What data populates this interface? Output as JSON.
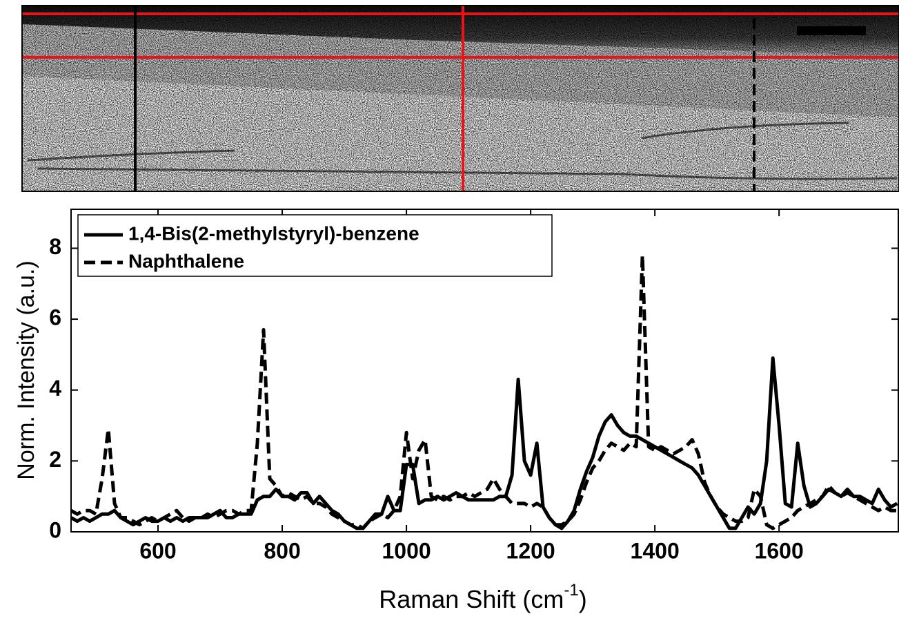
{
  "chart_data": {
    "type": "line",
    "x_label": "Raman Shift (cm",
    "x_label_superscript": "-1",
    "x_label_suffix": ")",
    "y_label": "Norm. Intensity (a.u.)",
    "xlim": [
      460,
      1792
    ],
    "xticks": [
      600,
      800,
      1000,
      1200,
      1400,
      1600
    ],
    "ylim": [
      0,
      9.1
    ],
    "yticks": [
      0,
      2,
      4,
      6,
      8
    ],
    "legend": "upper-left",
    "x": [
      460,
      470,
      480,
      490,
      500,
      510,
      520,
      530,
      540,
      550,
      560,
      570,
      580,
      590,
      600,
      610,
      620,
      630,
      640,
      650,
      660,
      670,
      680,
      690,
      700,
      710,
      720,
      730,
      740,
      750,
      760,
      770,
      780,
      790,
      800,
      810,
      820,
      830,
      840,
      850,
      860,
      870,
      880,
      890,
      900,
      910,
      920,
      930,
      940,
      950,
      960,
      970,
      980,
      990,
      1000,
      1010,
      1020,
      1030,
      1040,
      1050,
      1060,
      1070,
      1080,
      1090,
      1100,
      1110,
      1120,
      1130,
      1140,
      1150,
      1160,
      1170,
      1180,
      1190,
      1200,
      1210,
      1220,
      1230,
      1240,
      1250,
      1260,
      1270,
      1280,
      1290,
      1300,
      1310,
      1320,
      1330,
      1340,
      1350,
      1360,
      1370,
      1380,
      1390,
      1400,
      1410,
      1420,
      1430,
      1440,
      1450,
      1460,
      1470,
      1480,
      1490,
      1500,
      1510,
      1520,
      1530,
      1540,
      1550,
      1560,
      1570,
      1580,
      1590,
      1600,
      1610,
      1620,
      1630,
      1640,
      1650,
      1660,
      1670,
      1680,
      1690,
      1700,
      1710,
      1720,
      1730,
      1740,
      1750,
      1760,
      1770,
      1780,
      1790
    ],
    "series": [
      {
        "name": "1,4-Bis(2-methylstyryl)-benzene",
        "color": "#000000",
        "dash": "solid",
        "values": [
          0.4,
          0.3,
          0.4,
          0.3,
          0.4,
          0.5,
          0.5,
          0.6,
          0.4,
          0.3,
          0.2,
          0.3,
          0.4,
          0.3,
          0.3,
          0.4,
          0.3,
          0.4,
          0.3,
          0.4,
          0.4,
          0.4,
          0.4,
          0.5,
          0.6,
          0.4,
          0.4,
          0.5,
          0.5,
          0.5,
          0.9,
          1.0,
          1.0,
          1.2,
          1.0,
          1.0,
          0.9,
          1.1,
          1.1,
          0.8,
          1.0,
          0.8,
          0.6,
          0.5,
          0.3,
          0.2,
          0.1,
          0.1,
          0.3,
          0.5,
          0.5,
          1.0,
          0.6,
          0.6,
          1.9,
          1.9,
          0.8,
          0.9,
          0.9,
          1.0,
          0.9,
          1.0,
          1.1,
          1.0,
          0.9,
          0.9,
          0.9,
          0.9,
          0.9,
          1.0,
          1.0,
          1.6,
          4.3,
          2.0,
          1.6,
          2.5,
          0.7,
          0.4,
          0.2,
          0.1,
          0.3,
          0.6,
          1.2,
          1.7,
          2.1,
          2.7,
          3.1,
          3.3,
          3.0,
          2.8,
          2.7,
          2.7,
          2.6,
          2.5,
          2.4,
          2.3,
          2.2,
          2.1,
          2.0,
          1.9,
          1.8,
          1.6,
          1.3,
          1.0,
          0.7,
          0.4,
          0.1,
          0.1,
          0.4,
          0.7,
          0.5,
          0.8,
          2.0,
          4.9,
          3.0,
          0.8,
          0.7,
          2.5,
          1.3,
          0.7,
          0.8,
          1.0,
          1.2,
          1.1,
          1.0,
          1.2,
          1.0,
          1.0,
          0.9,
          0.8,
          1.2,
          0.9,
          0.7,
          0.8
        ]
      },
      {
        "name": "Naphthalene",
        "color": "#000000",
        "dash": "dashed",
        "values": [
          0.6,
          0.5,
          0.6,
          0.6,
          0.5,
          1.5,
          2.9,
          0.8,
          0.4,
          0.4,
          0.3,
          0.2,
          0.3,
          0.4,
          0.3,
          0.4,
          0.5,
          0.6,
          0.4,
          0.3,
          0.4,
          0.4,
          0.5,
          0.4,
          0.5,
          0.6,
          0.6,
          0.5,
          0.6,
          0.6,
          2.5,
          5.7,
          1.5,
          1.3,
          1.0,
          1.1,
          1.0,
          0.9,
          1.0,
          0.8,
          0.8,
          0.7,
          0.5,
          0.4,
          0.3,
          0.2,
          0.2,
          0.1,
          0.3,
          0.4,
          0.5,
          0.4,
          0.6,
          1.0,
          2.8,
          1.5,
          2.3,
          2.6,
          1.0,
          0.9,
          1.0,
          0.9,
          1.0,
          1.0,
          1.1,
          1.0,
          1.1,
          1.2,
          1.5,
          1.2,
          1.0,
          0.8,
          0.8,
          0.8,
          0.7,
          0.8,
          0.7,
          0.4,
          0.2,
          0.2,
          0.3,
          0.5,
          0.9,
          1.4,
          1.8,
          2.0,
          2.3,
          2.5,
          2.4,
          2.3,
          2.5,
          2.4,
          7.8,
          2.4,
          2.3,
          2.4,
          2.3,
          2.2,
          2.3,
          2.4,
          2.6,
          2.2,
          1.4,
          1.0,
          0.7,
          0.5,
          0.4,
          0.3,
          0.3,
          0.4,
          1.2,
          1.0,
          0.2,
          0.1,
          0.2,
          0.3,
          0.4,
          0.6,
          0.7,
          0.8,
          0.9,
          1.0,
          1.3,
          1.1,
          1.0,
          1.1,
          1.0,
          0.9,
          0.8,
          0.7,
          0.6,
          0.7,
          0.6,
          0.6
        ]
      }
    ]
  }
}
